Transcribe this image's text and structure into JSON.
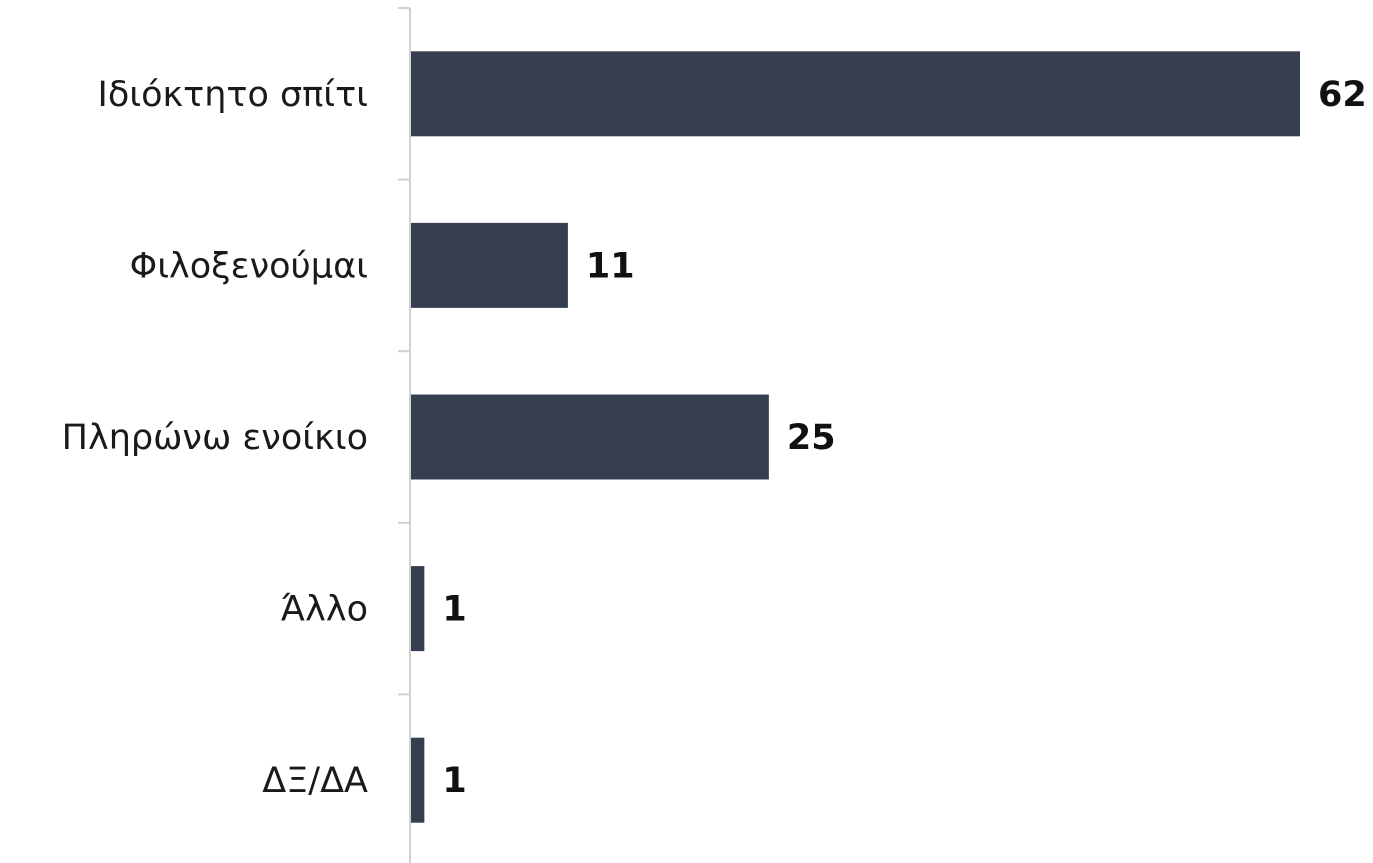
{
  "chart_data": {
    "type": "bar",
    "orientation": "horizontal",
    "categories": [
      "Ιδιόκτητο σπίτι",
      "Φιλοξενούμαι",
      "Πληρώνω ενοίκιο",
      "Άλλο",
      "ΔΞ/ΔΑ"
    ],
    "values": [
      62,
      11,
      25,
      1,
      1
    ],
    "color": "#353f50"
  }
}
